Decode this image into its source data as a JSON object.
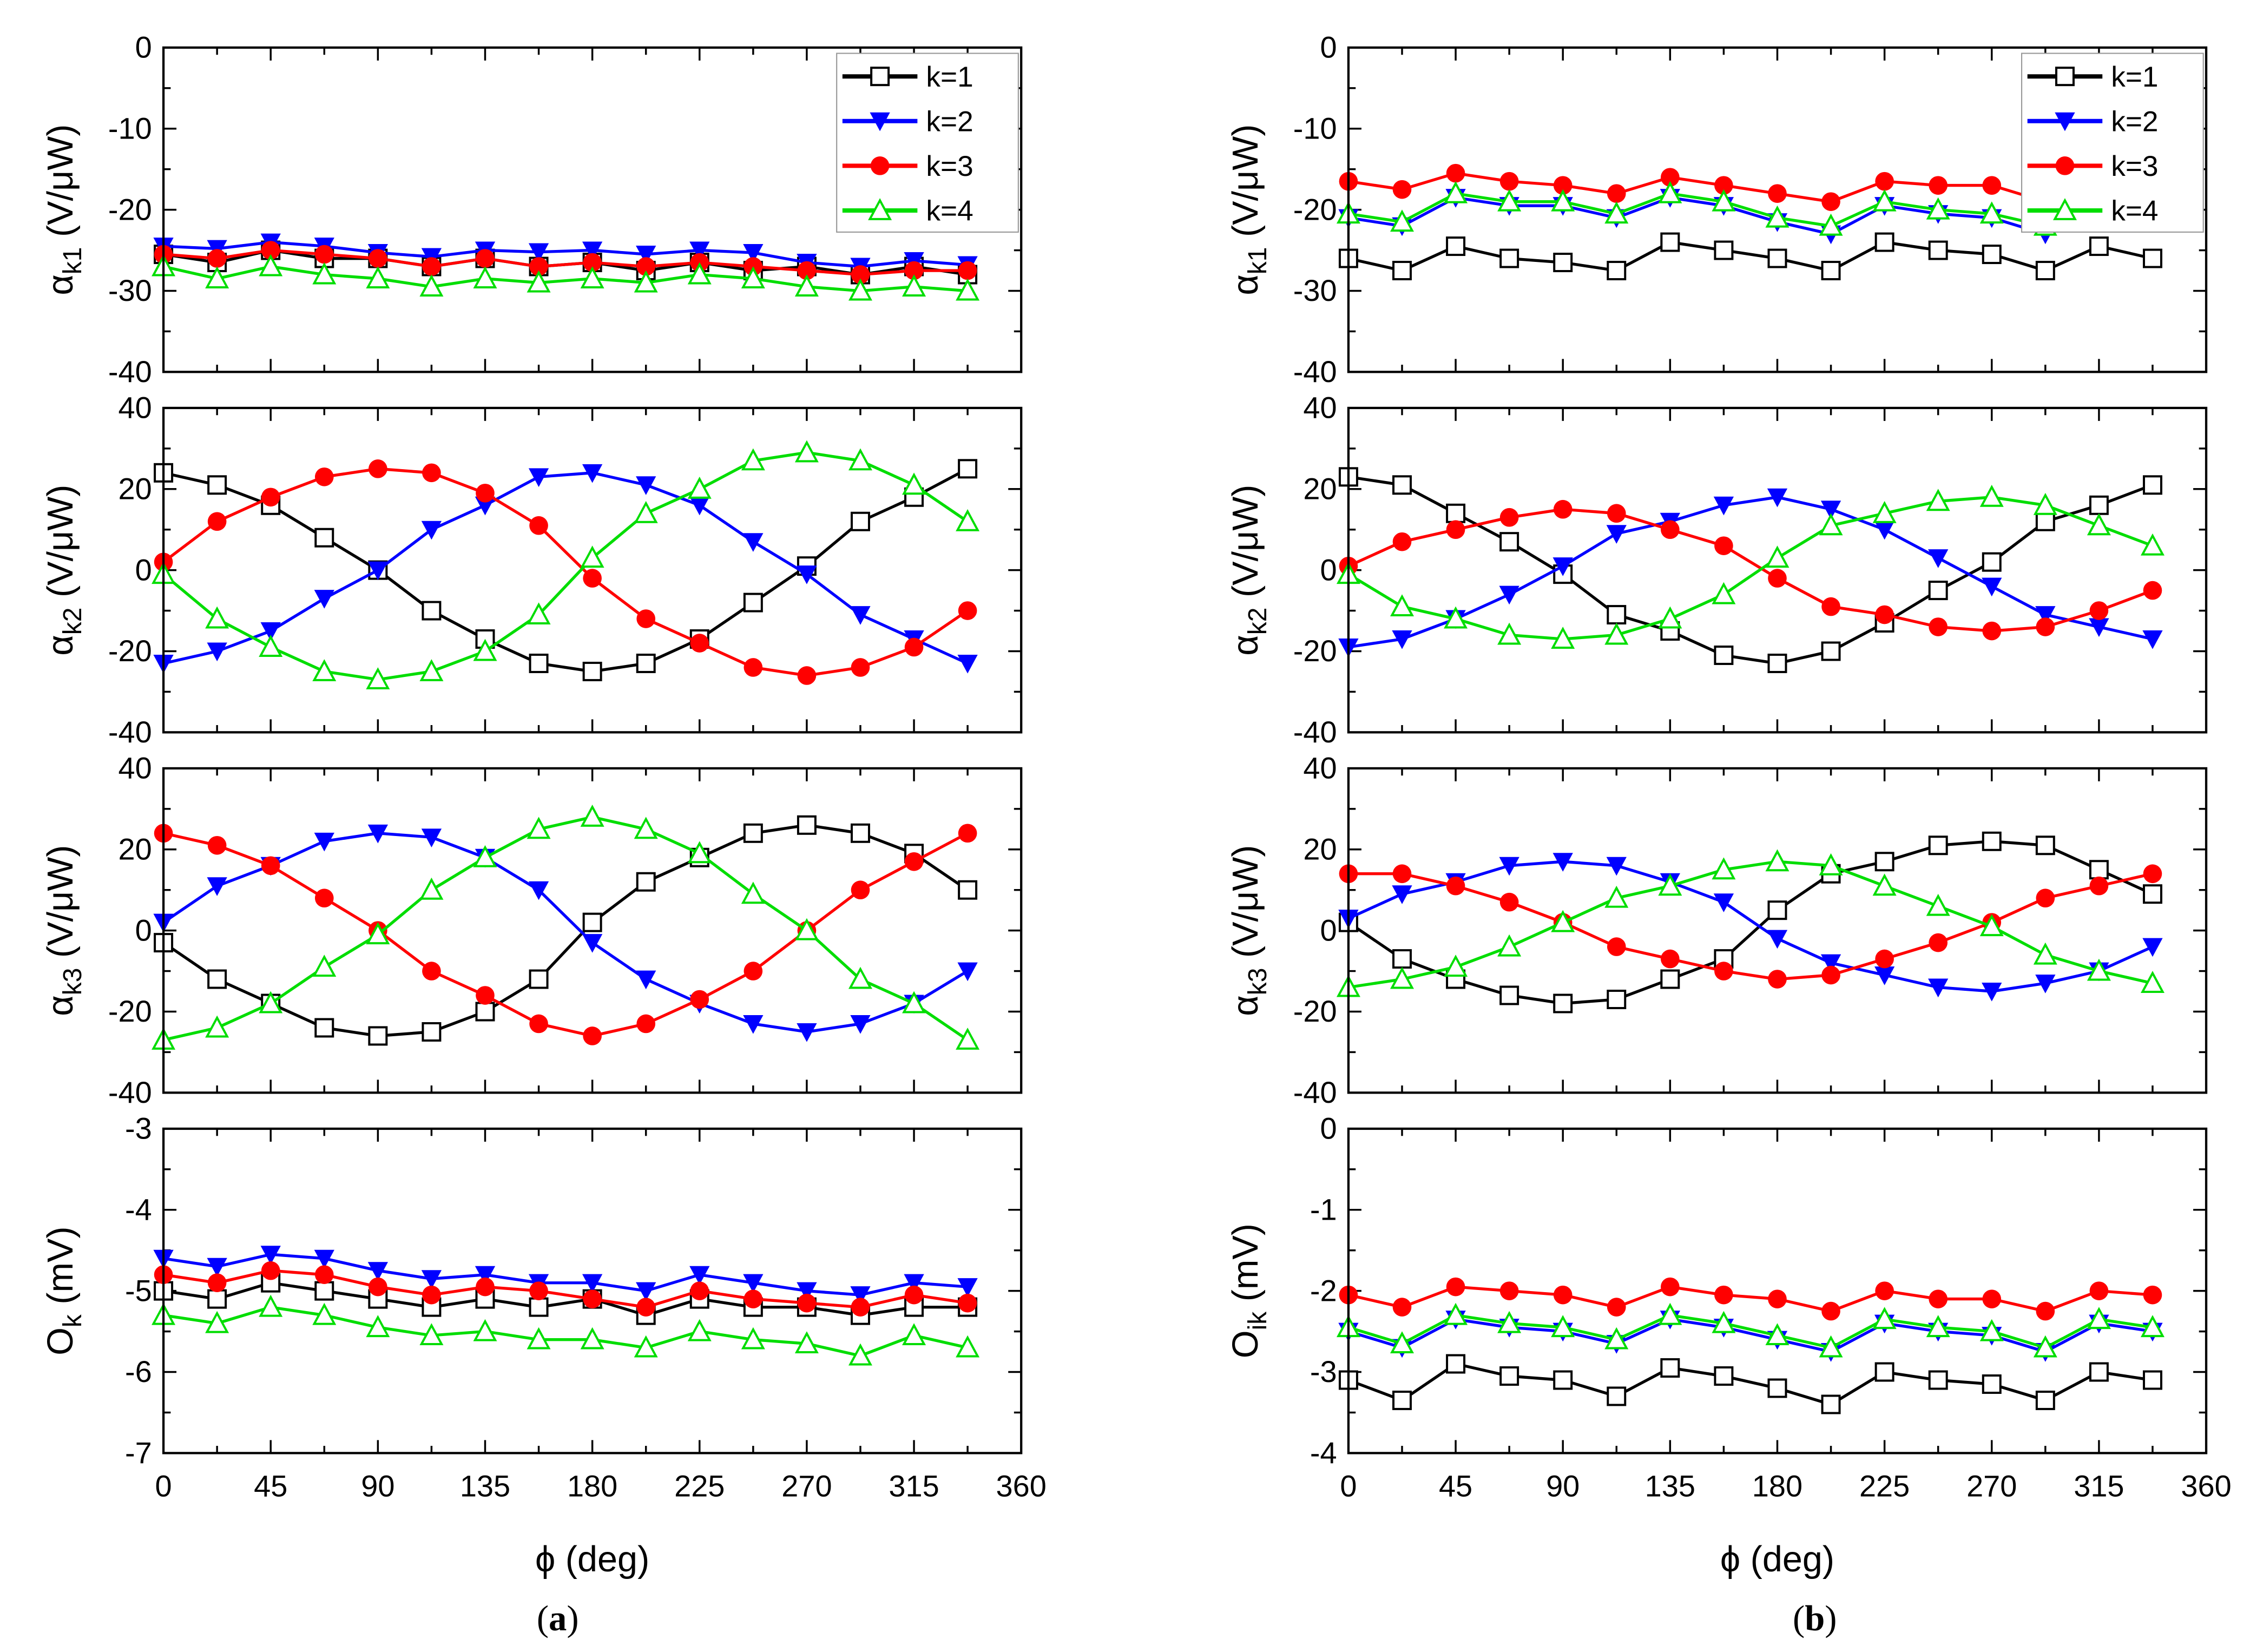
{
  "chart_data": [
    {
      "caption_letter": "a",
      "xlabel": "ϕ (deg)",
      "xlim": [
        0,
        360
      ],
      "xticks": [
        0,
        45,
        90,
        135,
        180,
        225,
        270,
        315,
        360
      ],
      "x": [
        0,
        22.5,
        45,
        67.5,
        90,
        112.5,
        135,
        157.5,
        180,
        202.5,
        225,
        247.5,
        270,
        292.5,
        315,
        337.5
      ],
      "legend": [
        "k=1",
        "k=2",
        "k=3",
        "k=4"
      ],
      "legend_placement": "top-right",
      "panels": [
        {
          "type": "line",
          "ylabel": {
            "symbol": "α",
            "sub": "k1",
            "unit": " (V/μW)"
          },
          "ylim": [
            -40,
            0
          ],
          "yticks": [
            0,
            -10,
            -20,
            -30,
            -40
          ],
          "series": [
            {
              "name": "k=1",
              "values": [
                -25.5,
                -26.5,
                -25,
                -26,
                -26,
                -27,
                -26,
                -27,
                -26.5,
                -27.5,
                -26.5,
                -27.5,
                -27,
                -28,
                -27,
                -28
              ]
            },
            {
              "name": "k=2",
              "values": [
                -24.5,
                -24.8,
                -24,
                -24.5,
                -25.3,
                -25.8,
                -25,
                -25.2,
                -25,
                -25.5,
                -25,
                -25.3,
                -26.5,
                -27,
                -26.3,
                -26.8
              ]
            },
            {
              "name": "k=3",
              "values": [
                -25.5,
                -26,
                -25,
                -25.5,
                -26,
                -27,
                -26,
                -27,
                -26.5,
                -27,
                -26.5,
                -27,
                -27.5,
                -28,
                -27.5,
                -27.5
              ]
            },
            {
              "name": "k=4",
              "values": [
                -27,
                -28.5,
                -27,
                -28,
                -28.5,
                -29.5,
                -28.5,
                -29,
                -28.5,
                -29,
                -28,
                -28.5,
                -29.5,
                -30,
                -29.5,
                -30
              ]
            }
          ]
        },
        {
          "type": "line",
          "ylabel": {
            "symbol": "α",
            "sub": "k2",
            "unit": " (V/μW)"
          },
          "ylim": [
            -40,
            40
          ],
          "yticks": [
            40,
            20,
            0,
            -20,
            -40
          ],
          "series": [
            {
              "name": "k=1",
              "values": [
                24,
                21,
                16,
                8,
                0,
                -10,
                -17,
                -23,
                -25,
                -23,
                -17,
                -8,
                1,
                12,
                18,
                25
              ]
            },
            {
              "name": "k=2",
              "values": [
                -23,
                -20,
                -15,
                -7,
                0,
                10,
                16,
                23,
                24,
                21,
                16,
                7,
                -1,
                -11,
                -17,
                -23
              ]
            },
            {
              "name": "k=3",
              "values": [
                2,
                12,
                18,
                23,
                25,
                24,
                19,
                11,
                -2,
                -12,
                -18,
                -24,
                -26,
                -24,
                -19,
                -10
              ]
            },
            {
              "name": "k=4",
              "values": [
                -1,
                -12,
                -19,
                -25,
                -27,
                -25,
                -20,
                -11,
                3,
                14,
                20,
                27,
                29,
                27,
                21,
                12
              ]
            }
          ]
        },
        {
          "type": "line",
          "ylabel": {
            "symbol": "α",
            "sub": "k3",
            "unit": " (V/μW)"
          },
          "ylim": [
            -40,
            40
          ],
          "yticks": [
            40,
            20,
            0,
            -20,
            -40
          ],
          "series": [
            {
              "name": "k=1",
              "values": [
                -3,
                -12,
                -18,
                -24,
                -26,
                -25,
                -20,
                -12,
                2,
                12,
                18,
                24,
                26,
                24,
                19,
                10
              ]
            },
            {
              "name": "k=2",
              "values": [
                2,
                11,
                16,
                22,
                24,
                23,
                18,
                10,
                -3,
                -12,
                -18,
                -23,
                -25,
                -23,
                -18,
                -10
              ]
            },
            {
              "name": "k=3",
              "values": [
                24,
                21,
                16,
                8,
                0,
                -10,
                -16,
                -23,
                -26,
                -23,
                -17,
                -10,
                0,
                10,
                17,
                24
              ]
            },
            {
              "name": "k=4",
              "values": [
                -27,
                -24,
                -18,
                -9,
                -1,
                10,
                18,
                25,
                28,
                25,
                19,
                9,
                0,
                -12,
                -18,
                -27
              ]
            }
          ]
        },
        {
          "type": "line",
          "ylabel": {
            "symbol": "O",
            "sub": "k",
            "unit": " (mV)"
          },
          "ylim": [
            -7,
            -3
          ],
          "yticks": [
            -3,
            -4,
            -5,
            -6,
            -7
          ],
          "series": [
            {
              "name": "k=1",
              "values": [
                -5.0,
                -5.1,
                -4.9,
                -5.0,
                -5.1,
                -5.2,
                -5.1,
                -5.2,
                -5.1,
                -5.3,
                -5.1,
                -5.2,
                -5.2,
                -5.3,
                -5.2,
                -5.2
              ]
            },
            {
              "name": "k=2",
              "values": [
                -4.6,
                -4.7,
                -4.55,
                -4.6,
                -4.75,
                -4.85,
                -4.8,
                -4.9,
                -4.9,
                -5.0,
                -4.8,
                -4.9,
                -5.0,
                -5.05,
                -4.9,
                -4.95
              ]
            },
            {
              "name": "k=3",
              "values": [
                -4.8,
                -4.9,
                -4.75,
                -4.8,
                -4.95,
                -5.05,
                -4.95,
                -5.0,
                -5.1,
                -5.2,
                -5.0,
                -5.1,
                -5.15,
                -5.2,
                -5.05,
                -5.15
              ]
            },
            {
              "name": "k=4",
              "values": [
                -5.3,
                -5.4,
                -5.2,
                -5.3,
                -5.45,
                -5.55,
                -5.5,
                -5.6,
                -5.6,
                -5.7,
                -5.5,
                -5.6,
                -5.65,
                -5.8,
                -5.55,
                -5.7
              ]
            }
          ]
        }
      ]
    },
    {
      "caption_letter": "b",
      "xlabel": "ϕ (deg)",
      "xlim": [
        0,
        360
      ],
      "xticks": [
        0,
        45,
        90,
        135,
        180,
        225,
        270,
        315,
        360
      ],
      "x": [
        0,
        22.5,
        45,
        67.5,
        90,
        112.5,
        135,
        157.5,
        180,
        202.5,
        225,
        247.5,
        270,
        292.5,
        315,
        337.5
      ],
      "legend": [
        "k=1",
        "k=2",
        "k=3",
        "k=4"
      ],
      "legend_placement": "top-right",
      "panels": [
        {
          "type": "line",
          "ylabel": {
            "symbol": "α",
            "sub": "k1",
            "unit": " (V/μW)"
          },
          "ylim": [
            -40,
            0
          ],
          "yticks": [
            0,
            -10,
            -20,
            -30,
            -40
          ],
          "series": [
            {
              "name": "k=1",
              "values": [
                -26,
                -27.5,
                -24.5,
                -26,
                -26.5,
                -27.5,
                -24,
                -25,
                -26,
                -27.5,
                -24,
                -25,
                -25.5,
                -27.5,
                -24.5,
                -26
              ]
            },
            {
              "name": "k=2",
              "values": [
                -21,
                -22,
                -18.5,
                -19.5,
                -19.5,
                -21,
                -18.5,
                -19.5,
                -21.5,
                -23,
                -19.5,
                -20.5,
                -21,
                -23,
                -20,
                -21
              ]
            },
            {
              "name": "k=3",
              "values": [
                -16.5,
                -17.5,
                -15.5,
                -16.5,
                -17,
                -18,
                -16,
                -17,
                -18,
                -19,
                -16.5,
                -17,
                -17,
                -19,
                -17.5,
                -18
              ]
            },
            {
              "name": "k=4",
              "values": [
                -20.5,
                -21.5,
                -18,
                -19,
                -19,
                -20.5,
                -18,
                -19,
                -21,
                -22,
                -19,
                -20,
                -20.5,
                -22,
                -19.5,
                -20.5
              ]
            }
          ]
        },
        {
          "type": "line",
          "ylabel": {
            "symbol": "α",
            "sub": "k2",
            "unit": " (V/μW)"
          },
          "ylim": [
            -40,
            40
          ],
          "yticks": [
            40,
            20,
            0,
            -20,
            -40
          ],
          "series": [
            {
              "name": "k=1",
              "values": [
                23,
                21,
                14,
                7,
                -1,
                -11,
                -15,
                -21,
                -23,
                -20,
                -13,
                -5,
                2,
                12,
                16,
                21
              ]
            },
            {
              "name": "k=2",
              "values": [
                -19,
                -17,
                -12,
                -6,
                1,
                9,
                12,
                16,
                18,
                15,
                10,
                3,
                -4,
                -11,
                -14,
                -17
              ]
            },
            {
              "name": "k=3",
              "values": [
                1,
                7,
                10,
                13,
                15,
                14,
                10,
                6,
                -2,
                -9,
                -11,
                -14,
                -15,
                -14,
                -10,
                -5
              ]
            },
            {
              "name": "k=4",
              "values": [
                -1,
                -9,
                -12,
                -16,
                -17,
                -16,
                -12,
                -6,
                3,
                11,
                14,
                17,
                18,
                16,
                11,
                6
              ]
            }
          ]
        },
        {
          "type": "line",
          "ylabel": {
            "symbol": "α",
            "sub": "k3",
            "unit": " (V/μW)"
          },
          "ylim": [
            -40,
            40
          ],
          "yticks": [
            40,
            20,
            0,
            -20,
            -40
          ],
          "series": [
            {
              "name": "k=1",
              "values": [
                2,
                -7,
                -12,
                -16,
                -18,
                -17,
                -12,
                -7,
                5,
                14,
                17,
                21,
                22,
                21,
                15,
                9
              ]
            },
            {
              "name": "k=2",
              "values": [
                3,
                9,
                12,
                16,
                17,
                16,
                12,
                7,
                -2,
                -8,
                -11,
                -14,
                -15,
                -13,
                -10,
                -4
              ]
            },
            {
              "name": "k=3",
              "values": [
                14,
                14,
                11,
                7,
                2,
                -4,
                -7,
                -10,
                -12,
                -11,
                -7,
                -3,
                2,
                8,
                11,
                14
              ]
            },
            {
              "name": "k=4",
              "values": [
                -14,
                -12,
                -9,
                -4,
                2,
                8,
                11,
                15,
                17,
                16,
                11,
                6,
                1,
                -6,
                -10,
                -13
              ]
            }
          ]
        },
        {
          "type": "line",
          "ylabel": {
            "symbol": "O",
            "sub": "ik",
            "unit": " (mV)"
          },
          "ylim": [
            -4,
            0
          ],
          "yticks": [
            0,
            -1,
            -2,
            -3,
            -4
          ],
          "series": [
            {
              "name": "k=1",
              "values": [
                -3.1,
                -3.35,
                -2.9,
                -3.05,
                -3.1,
                -3.3,
                -2.95,
                -3.05,
                -3.2,
                -3.4,
                -3.0,
                -3.1,
                -3.15,
                -3.35,
                -3.0,
                -3.1
              ]
            },
            {
              "name": "k=2",
              "values": [
                -2.5,
                -2.7,
                -2.35,
                -2.45,
                -2.5,
                -2.65,
                -2.35,
                -2.45,
                -2.6,
                -2.75,
                -2.4,
                -2.5,
                -2.55,
                -2.75,
                -2.4,
                -2.5
              ]
            },
            {
              "name": "k=3",
              "values": [
                -2.05,
                -2.2,
                -1.95,
                -2.0,
                -2.05,
                -2.2,
                -1.95,
                -2.05,
                -2.1,
                -2.25,
                -2.0,
                -2.1,
                -2.1,
                -2.25,
                -2.0,
                -2.05
              ]
            },
            {
              "name": "k=4",
              "values": [
                -2.45,
                -2.65,
                -2.3,
                -2.4,
                -2.45,
                -2.6,
                -2.3,
                -2.4,
                -2.55,
                -2.7,
                -2.35,
                -2.45,
                -2.5,
                -2.7,
                -2.35,
                -2.45
              ]
            }
          ]
        }
      ]
    }
  ],
  "series_colors": {
    "k=1": "#000000",
    "k=2": "#0000ff",
    "k=3": "#ff0000",
    "k=4": "#00dd00"
  },
  "series_markers": {
    "k=1": "square-open",
    "k=2": "triangle-down-filled",
    "k=3": "circle-filled",
    "k=4": "triangle-up-open"
  }
}
